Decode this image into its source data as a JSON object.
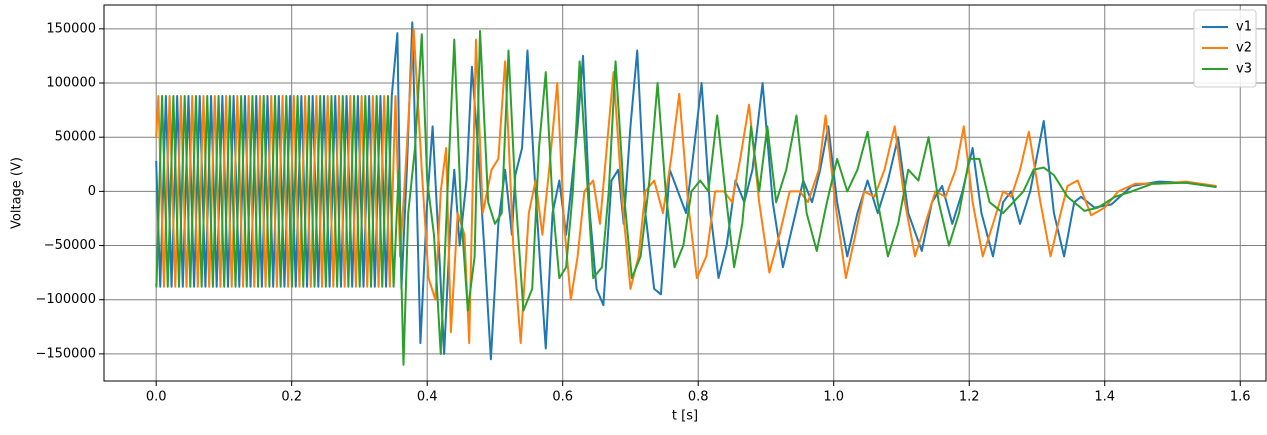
{
  "chart_data": {
    "type": "line",
    "xlabel": "t [s]",
    "ylabel": "Voltage (V)",
    "xlim": [
      -0.077,
      1.638
    ],
    "ylim": [
      -175000,
      172000
    ],
    "xticks": [
      {
        "value": 0,
        "label": "0.0"
      },
      0.2,
      0.4,
      0.6,
      0.8,
      {
        "value": 1,
        "label": "1.0"
      },
      1.2,
      1.4,
      1.6
    ],
    "yticks": [
      {
        "value": -150000,
        "label": "−150000"
      },
      {
        "value": -100000,
        "label": "−100000"
      },
      {
        "value": -50000,
        "label": "−50000"
      },
      0,
      50000,
      100000,
      150000
    ],
    "grid": true,
    "legend": "upper right",
    "series": [
      {
        "name": "v1",
        "color": "#1f77b4",
        "x": [
          0,
          0.006,
          0.0143,
          0.0227,
          0.031,
          0.0393,
          0.0477,
          0.056,
          0.0643,
          0.0727,
          0.081,
          0.0893,
          0.0977,
          0.106,
          0.1143,
          0.1227,
          0.131,
          0.1393,
          0.1477,
          0.156,
          0.1643,
          0.1727,
          0.181,
          0.1893,
          0.1977,
          0.206,
          0.2143,
          0.2227,
          0.231,
          0.2393,
          0.2477,
          0.256,
          0.2643,
          0.2727,
          0.281,
          0.2893,
          0.2977,
          0.306,
          0.3143,
          0.3227,
          0.331,
          0.3393,
          0.3477,
          0.356,
          0.362,
          0.37,
          0.378,
          0.39,
          0.4,
          0.408,
          0.418,
          0.425,
          0.435,
          0.44,
          0.448,
          0.458,
          0.466,
          0.475,
          0.485,
          0.494,
          0.505,
          0.515,
          0.525,
          0.53,
          0.54,
          0.548,
          0.558,
          0.568,
          0.575,
          0.585,
          0.595,
          0.605,
          0.612,
          0.622,
          0.63,
          0.64,
          0.65,
          0.66,
          0.672,
          0.682,
          0.69,
          0.7,
          0.71,
          0.722,
          0.735,
          0.745,
          0.758,
          0.77,
          0.782,
          0.792,
          0.805,
          0.818,
          0.83,
          0.842,
          0.855,
          0.868,
          0.88,
          0.895,
          0.91,
          0.925,
          0.94,
          0.955,
          0.968,
          0.98,
          0.992,
          1.005,
          1.02,
          1.035,
          1.05,
          1.065,
          1.08,
          1.095,
          1.11,
          1.13,
          1.145,
          1.16,
          1.175,
          1.19,
          1.205,
          1.218,
          1.235,
          1.25,
          1.262,
          1.275,
          1.29,
          1.31,
          1.325,
          1.34,
          1.355,
          1.365,
          1.385,
          1.41,
          1.44,
          1.48,
          1.52,
          1.565
        ],
        "values": [
          28000,
          -88000,
          88000,
          -88000,
          88000,
          -88000,
          88000,
          -88000,
          88000,
          -88000,
          88000,
          -88000,
          88000,
          -88000,
          88000,
          -88000,
          88000,
          -88000,
          88000,
          -88000,
          88000,
          -88000,
          88000,
          -88000,
          88000,
          -88000,
          88000,
          -88000,
          88000,
          -88000,
          88000,
          -88000,
          88000,
          -88000,
          88000,
          -88000,
          88000,
          -88000,
          88000,
          -88000,
          88000,
          -88000,
          88000,
          146000,
          -90000,
          20000,
          156000,
          -140000,
          -10000,
          60000,
          -60000,
          -150000,
          -20000,
          20000,
          -50000,
          10000,
          115000,
          40000,
          -60000,
          -155000,
          -30000,
          20000,
          -40000,
          15000,
          40000,
          130000,
          20000,
          -80000,
          -145000,
          -20000,
          10000,
          -40000,
          0,
          60000,
          125000,
          -20000,
          -90000,
          -105000,
          10000,
          20000,
          -30000,
          60000,
          130000,
          -20000,
          -90000,
          -95000,
          20000,
          0,
          -20000,
          30000,
          100000,
          -20000,
          -80000,
          -50000,
          10000,
          -10000,
          20000,
          100000,
          -10000,
          -70000,
          -30000,
          10000,
          -10000,
          20000,
          60000,
          -10000,
          -60000,
          -20000,
          10000,
          -20000,
          10000,
          50000,
          -20000,
          -55000,
          -10000,
          5000,
          -30000,
          0,
          40000,
          -20000,
          -60000,
          -10000,
          0,
          -30000,
          0,
          65000,
          -20000,
          -60000,
          -10000,
          -5000,
          -15000,
          -12000,
          5000,
          9000,
          8000,
          4000
        ]
      },
      {
        "name": "v2",
        "color": "#ff7f0e",
        "x": [
          0,
          0.0032,
          0.0115,
          0.0198,
          0.0282,
          0.0365,
          0.0448,
          0.0532,
          0.0615,
          0.0698,
          0.0782,
          0.0865,
          0.0948,
          0.1032,
          0.1115,
          0.1198,
          0.1282,
          0.1365,
          0.1448,
          0.1532,
          0.1615,
          0.1698,
          0.1782,
          0.1865,
          0.1948,
          0.2032,
          0.2115,
          0.2198,
          0.2282,
          0.2365,
          0.2448,
          0.2532,
          0.2615,
          0.2698,
          0.2782,
          0.2865,
          0.2948,
          0.3032,
          0.3115,
          0.3198,
          0.3282,
          0.3365,
          0.3448,
          0.3532,
          0.36,
          0.368,
          0.38,
          0.392,
          0.402,
          0.412,
          0.42,
          0.428,
          0.435,
          0.445,
          0.455,
          0.462,
          0.472,
          0.482,
          0.495,
          0.505,
          0.515,
          0.527,
          0.538,
          0.55,
          0.56,
          0.57,
          0.58,
          0.592,
          0.602,
          0.612,
          0.622,
          0.632,
          0.645,
          0.655,
          0.665,
          0.675,
          0.688,
          0.7,
          0.712,
          0.722,
          0.735,
          0.748,
          0.76,
          0.772,
          0.785,
          0.798,
          0.812,
          0.825,
          0.838,
          0.85,
          0.862,
          0.875,
          0.89,
          0.905,
          0.92,
          0.935,
          0.95,
          0.962,
          0.978,
          0.988,
          1.002,
          1.018,
          1.032,
          1.045,
          1.06,
          1.075,
          1.09,
          1.105,
          1.12,
          1.135,
          1.15,
          1.165,
          1.18,
          1.192,
          1.205,
          1.22,
          1.235,
          1.25,
          1.262,
          1.275,
          1.288,
          1.305,
          1.32,
          1.335,
          1.345,
          1.36,
          1.38,
          1.4,
          1.42,
          1.445,
          1.48,
          1.52,
          1.565
        ],
        "values": [
          50000,
          88000,
          -88000,
          88000,
          -88000,
          88000,
          -88000,
          88000,
          -88000,
          88000,
          -88000,
          88000,
          -88000,
          88000,
          -88000,
          88000,
          -88000,
          88000,
          -88000,
          88000,
          -88000,
          88000,
          -88000,
          88000,
          -88000,
          88000,
          -88000,
          88000,
          -88000,
          88000,
          -88000,
          88000,
          -88000,
          88000,
          -88000,
          88000,
          -88000,
          88000,
          -88000,
          88000,
          -88000,
          88000,
          -88000,
          88000,
          -60000,
          20000,
          150000,
          20000,
          -80000,
          -100000,
          0,
          40000,
          -130000,
          -20000,
          -40000,
          -140000,
          140000,
          -20000,
          20000,
          30000,
          120000,
          -50000,
          -140000,
          -20000,
          10000,
          -40000,
          20000,
          100000,
          -30000,
          -100000,
          -60000,
          0,
          10000,
          -30000,
          40000,
          110000,
          -10000,
          -90000,
          -60000,
          0,
          10000,
          -20000,
          30000,
          90000,
          -10000,
          -80000,
          -60000,
          0,
          0,
          -10000,
          30000,
          80000,
          -10000,
          -75000,
          -40000,
          0,
          0,
          -10000,
          20000,
          70000,
          -10000,
          -80000,
          -40000,
          0,
          -5000,
          20000,
          60000,
          -10000,
          -60000,
          -30000,
          0,
          -5000,
          20000,
          60000,
          -10000,
          -60000,
          -30000,
          0,
          -5000,
          20000,
          55000,
          -10000,
          -60000,
          -20000,
          5000,
          10000,
          -22000,
          -15000,
          0,
          7000,
          7000,
          9000,
          5000
        ]
      },
      {
        "name": "v3",
        "color": "#2ca02c",
        "x": [
          0,
          0.0004,
          0.0087,
          0.0171,
          0.0254,
          0.0337,
          0.0421,
          0.0504,
          0.0587,
          0.0671,
          0.0754,
          0.0837,
          0.0921,
          0.1004,
          0.1087,
          0.1171,
          0.1254,
          0.1337,
          0.1421,
          0.1504,
          0.1587,
          0.1671,
          0.1754,
          0.1837,
          0.1921,
          0.2004,
          0.2087,
          0.2171,
          0.2254,
          0.2337,
          0.2421,
          0.2504,
          0.2587,
          0.2671,
          0.2754,
          0.2837,
          0.2921,
          0.3004,
          0.3087,
          0.3171,
          0.3254,
          0.3337,
          0.3421,
          0.3504,
          0.358,
          0.365,
          0.372,
          0.382,
          0.392,
          0.4,
          0.41,
          0.42,
          0.43,
          0.44,
          0.45,
          0.46,
          0.47,
          0.478,
          0.49,
          0.5,
          0.51,
          0.52,
          0.53,
          0.542,
          0.555,
          0.565,
          0.575,
          0.585,
          0.595,
          0.605,
          0.615,
          0.625,
          0.635,
          0.645,
          0.658,
          0.668,
          0.678,
          0.69,
          0.702,
          0.715,
          0.728,
          0.74,
          0.752,
          0.765,
          0.778,
          0.79,
          0.803,
          0.815,
          0.828,
          0.84,
          0.853,
          0.865,
          0.878,
          0.89,
          0.902,
          0.915,
          0.93,
          0.945,
          0.96,
          0.975,
          0.99,
          1.005,
          1.02,
          1.035,
          1.05,
          1.065,
          1.08,
          1.095,
          1.11,
          1.125,
          1.14,
          1.155,
          1.17,
          1.185,
          1.2,
          1.215,
          1.23,
          1.25,
          1.265,
          1.28,
          1.295,
          1.31,
          1.325,
          1.345,
          1.37,
          1.39,
          1.415,
          1.44,
          1.47,
          1.52,
          1.565
        ],
        "values": [
          -85000,
          -88000,
          88000,
          -88000,
          88000,
          -88000,
          88000,
          -88000,
          88000,
          -88000,
          88000,
          -88000,
          88000,
          -88000,
          88000,
          -88000,
          88000,
          -88000,
          88000,
          -88000,
          88000,
          -88000,
          88000,
          -88000,
          88000,
          -88000,
          88000,
          -88000,
          88000,
          -88000,
          88000,
          -88000,
          88000,
          -88000,
          88000,
          -88000,
          88000,
          -88000,
          88000,
          -88000,
          88000,
          -88000,
          88000,
          -88000,
          20000,
          -160000,
          -20000,
          40000,
          145000,
          10000,
          -40000,
          -150000,
          0,
          140000,
          -20000,
          -110000,
          -60000,
          148000,
          -10000,
          -30000,
          -20000,
          130000,
          0,
          -110000,
          -90000,
          40000,
          110000,
          -10000,
          -80000,
          -70000,
          0,
          120000,
          20000,
          -80000,
          -70000,
          0,
          120000,
          0,
          -80000,
          -60000,
          10000,
          100000,
          0,
          -70000,
          -50000,
          0,
          10000,
          0,
          70000,
          0,
          -70000,
          -30000,
          60000,
          0,
          60000,
          -10000,
          20000,
          70000,
          -20000,
          -55000,
          -10000,
          30000,
          0,
          20000,
          55000,
          -10000,
          -60000,
          -30000,
          20000,
          10000,
          50000,
          -10000,
          -50000,
          -20000,
          30000,
          30000,
          -10000,
          -20000,
          -10000,
          0,
          20000,
          22000,
          15000,
          -5000,
          -18000,
          -15000,
          -5000,
          0,
          7000,
          8000,
          4000
        ]
      }
    ]
  }
}
